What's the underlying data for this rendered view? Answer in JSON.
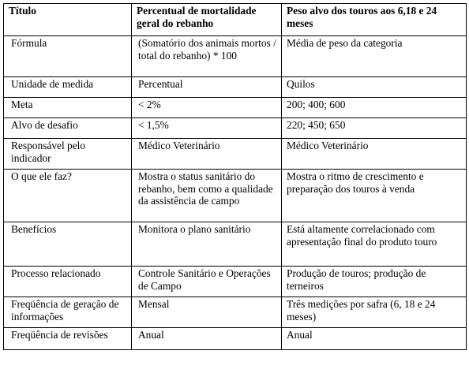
{
  "header": {
    "col1": "Título",
    "col2": "Percentual de mortalidade geral do rebanho",
    "col3": "Peso alvo dos touros aos 6,18 e 24 meses"
  },
  "rows": [
    {
      "label": "Fórmula",
      "col2": "(Somatório dos animais mortos / total do rebanho) * 100",
      "col3": "Média de peso da categoria"
    },
    {
      "label": "Unidade de medida",
      "col2": "Percentual",
      "col3": "Quilos"
    },
    {
      "label": "Meta",
      "col2": "< 2%",
      "col3": "200; 400; 600"
    },
    {
      "label": "Alvo de desafio",
      "col2": "< 1,5%",
      "col3": "220; 450; 650"
    },
    {
      "label": "Responsável pelo indicador",
      "col2": "Médico Veterinário",
      "col3": "Médico Veterinário"
    },
    {
      "label": "O que ele faz?",
      "col2": "Mostra o status sanitário do rebanho, bem como a qualidade da assistência de campo",
      "col3": "Mostra o ritmo de crescimento e preparação dos touros à venda"
    },
    {
      "label": "Benefícios",
      "col2": "Monitora o plano sanitário",
      "col3": "Está altamente correlacionado com apresentação final do produto touro"
    },
    {
      "label": "Processo relacionado",
      "col2": "Controle Sanitário e Operações de Campo",
      "col3": "Produção de touros; produção de terneiros"
    },
    {
      "label": "Freqüência de geração de informações",
      "col2": "Mensal",
      "col3": "Três medições por safra (6, 18 e 24 meses)"
    },
    {
      "label": "Freqüência de revisões",
      "col2": "Anual",
      "col3": "Anual"
    }
  ]
}
